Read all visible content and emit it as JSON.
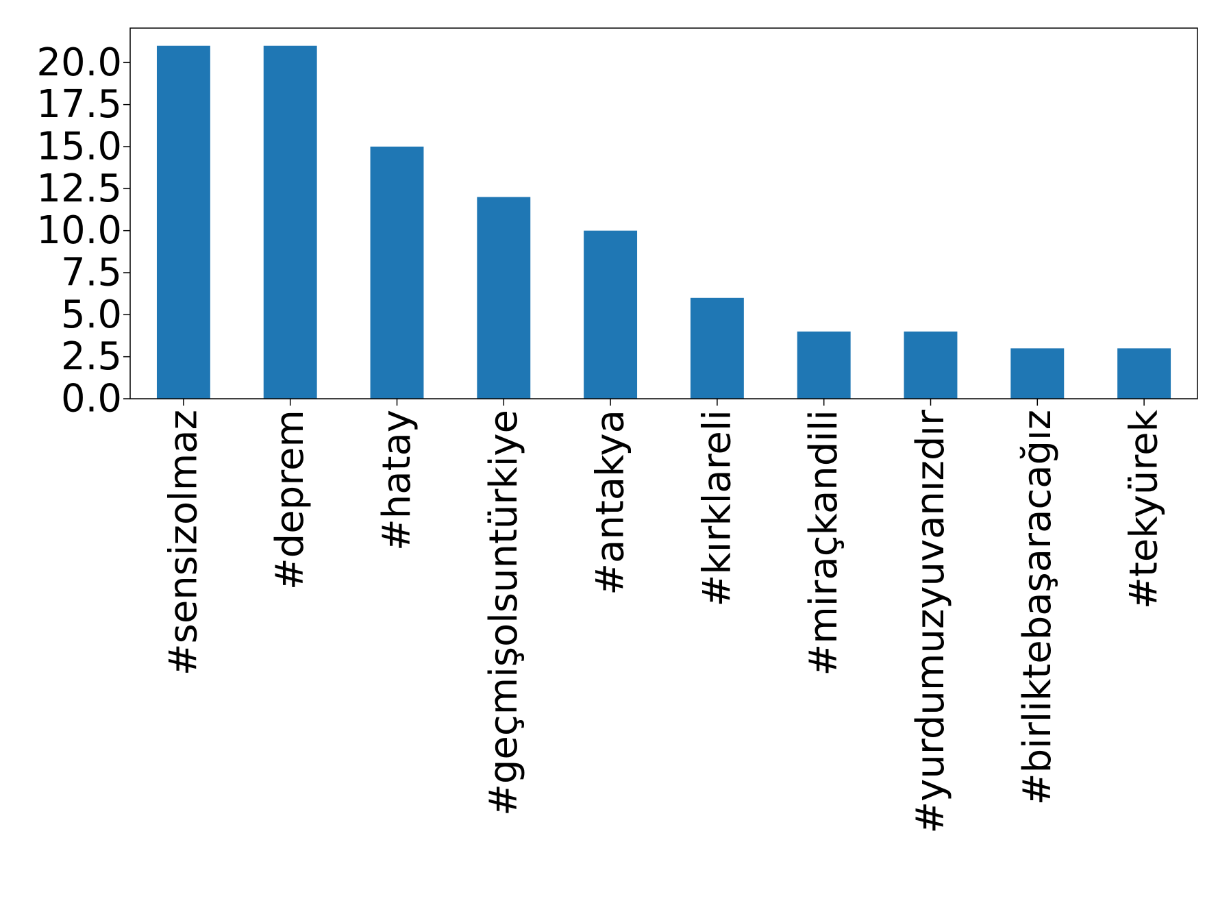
{
  "chart_data": {
    "type": "bar",
    "title": "",
    "xlabel": "",
    "ylabel": "",
    "categories": [
      "#sensizolmaz",
      "#deprem",
      "#hatay",
      "#geçmişolsuntürkiye",
      "#antakya",
      "#kırklareli",
      "#miraçkandili",
      "#yurdumuzyuvanızdır",
      "#birliktebaşaracağız",
      "#tekyürek"
    ],
    "values": [
      21,
      21,
      15,
      12,
      10,
      6,
      4,
      4,
      3,
      3
    ],
    "ylim": [
      0,
      22.05
    ],
    "yticks": [
      0,
      2.5,
      5,
      7.5,
      10,
      12.5,
      15,
      17.5,
      20
    ],
    "ytick_labels": [
      "0.0",
      "2.5",
      "5.0",
      "7.5",
      "10.0",
      "12.5",
      "15.0",
      "17.5",
      "20.0"
    ],
    "grid": false,
    "legend": "none",
    "bar_color": "#1f77b4"
  }
}
